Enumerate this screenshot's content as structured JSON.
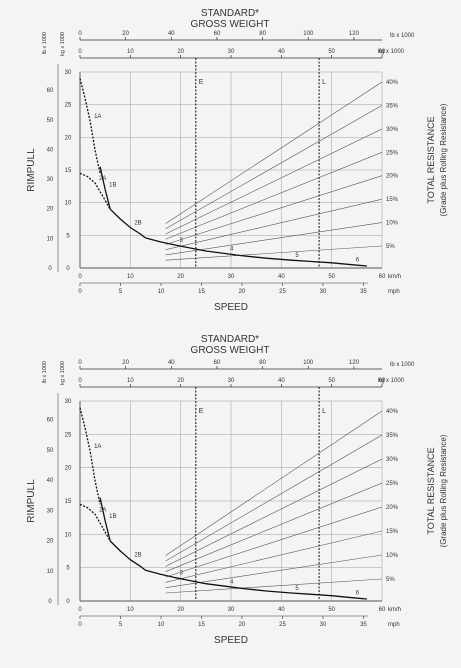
{
  "chart_data": [
    {
      "type": "line",
      "title": "STANDARD*",
      "subtitle": "GROSS WEIGHT",
      "ylabel": "RIMPULL",
      "xlabel": "SPEED",
      "right_label_1": "TOTAL RESISTANCE",
      "right_label_2": "(Grade plus Rolling Resistance)",
      "top_units_lb": "lb x 1000",
      "top_units_kg": "kg x 1000",
      "bottom_units_kmh": "km/h",
      "bottom_units_mph": "mph",
      "left_units_lb": "lb x 1000",
      "left_units_kg": "kg x 1000",
      "top_lb_ticks": [
        "0",
        "20",
        "40",
        "60",
        "80",
        "100",
        "120"
      ],
      "top_kg_ticks": [
        "0",
        "10",
        "20",
        "30",
        "40",
        "50",
        "60"
      ],
      "rimpull_kg_ticks": [
        "0",
        "5",
        "10",
        "15",
        "20",
        "25",
        "30"
      ],
      "rimpull_lb_ticks": [
        "0",
        "10",
        "20",
        "30",
        "40",
        "50",
        "60"
      ],
      "kmh_ticks": [
        "0",
        "10",
        "20",
        "30",
        "40",
        "50",
        "60"
      ],
      "mph_ticks": [
        "0",
        "5",
        "10",
        "15",
        "20",
        "25",
        "30",
        "35"
      ],
      "resistance_ticks": [
        "40%",
        "35%",
        "30%",
        "25%",
        "20%",
        "15%",
        "10%",
        "5%"
      ],
      "weight_markers": [
        {
          "label": "E",
          "kg": 23
        },
        {
          "label": "L",
          "kg": 47.5
        }
      ],
      "xlim_kmh": [
        0,
        60
      ],
      "ylim_kg": [
        0,
        30
      ],
      "series": [
        {
          "name": "1A",
          "style": "dashed",
          "x_kmh": [
            0,
            1,
            2,
            3,
            4
          ],
          "y_kg": [
            29,
            26,
            22.5,
            18,
            14.5
          ]
        },
        {
          "name": "2A",
          "style": "dashed",
          "x_kmh": [
            0,
            1.5,
            3,
            4.5,
            6
          ],
          "y_kg": [
            14.5,
            14,
            13,
            11,
            9
          ]
        },
        {
          "name": "1B",
          "style": "solid",
          "x_kmh": [
            4,
            5,
            6
          ],
          "y_kg": [
            15.5,
            12,
            9
          ]
        },
        {
          "name": "2B",
          "style": "solid",
          "x_kmh": [
            6,
            8,
            10,
            12,
            13
          ],
          "y_kg": [
            9,
            7.5,
            6.2,
            5.2,
            4.6
          ]
        },
        {
          "name": "3",
          "style": "solid",
          "x_kmh": [
            13,
            16,
            19,
            21
          ],
          "y_kg": [
            4.6,
            4.0,
            3.5,
            3.2
          ]
        },
        {
          "name": "4",
          "style": "solid",
          "x_kmh": [
            21,
            25,
            29,
            32
          ],
          "y_kg": [
            3.2,
            2.6,
            2.2,
            1.9
          ]
        },
        {
          "name": "5",
          "style": "solid",
          "x_kmh": [
            32,
            37,
            42,
            46
          ],
          "y_kg": [
            1.9,
            1.5,
            1.2,
            1.0
          ]
        },
        {
          "name": "6",
          "style": "solid",
          "x_kmh": [
            46,
            50,
            54,
            57
          ],
          "y_kg": [
            1.0,
            0.8,
            0.5,
            0.3
          ]
        }
      ],
      "grid": true
    },
    {
      "type": "line",
      "title": "STANDARD*",
      "subtitle": "GROSS WEIGHT",
      "ylabel": "RIMPULL",
      "xlabel": "SPEED",
      "right_label_1": "TOTAL RESISTANCE",
      "right_label_2": "(Grade plus Rolling Resistance)",
      "top_units_lb": "lb x 1000",
      "top_units_kg": "kg x 1000",
      "bottom_units_kmh": "km/h",
      "bottom_units_mph": "mph",
      "left_units_lb": "lb x 1000",
      "left_units_kg": "kg x 1000",
      "top_lb_ticks": [
        "0",
        "20",
        "40",
        "60",
        "80",
        "100",
        "120"
      ],
      "top_kg_ticks": [
        "0",
        "10",
        "20",
        "30",
        "40",
        "50",
        "60"
      ],
      "rimpull_kg_ticks": [
        "0",
        "5",
        "10",
        "15",
        "20",
        "25",
        "30"
      ],
      "rimpull_lb_ticks": [
        "0",
        "10",
        "20",
        "30",
        "40",
        "50",
        "60"
      ],
      "kmh_ticks": [
        "0",
        "10",
        "20",
        "30",
        "40",
        "50",
        "60"
      ],
      "mph_ticks": [
        "0",
        "5",
        "10",
        "15",
        "20",
        "25",
        "30",
        "35"
      ],
      "resistance_ticks": [
        "40%",
        "35%",
        "30%",
        "25%",
        "20%",
        "15%",
        "10%",
        "5%"
      ],
      "weight_markers": [
        {
          "label": "E",
          "kg": 23
        },
        {
          "label": "L",
          "kg": 47.5
        }
      ],
      "xlim_kmh": [
        0,
        60
      ],
      "ylim_kg": [
        0,
        30
      ],
      "series": [
        {
          "name": "1A",
          "style": "dashed",
          "x_kmh": [
            0,
            1,
            2,
            3,
            4
          ],
          "y_kg": [
            29,
            26,
            22.5,
            18,
            14.5
          ]
        },
        {
          "name": "2A",
          "style": "dashed",
          "x_kmh": [
            0,
            1.5,
            3,
            4.5,
            6
          ],
          "y_kg": [
            14.5,
            14,
            13,
            11,
            9
          ]
        },
        {
          "name": "1B",
          "style": "solid",
          "x_kmh": [
            4,
            5,
            6
          ],
          "y_kg": [
            15.5,
            12,
            9
          ]
        },
        {
          "name": "2B",
          "style": "solid",
          "x_kmh": [
            6,
            8,
            10,
            12,
            13
          ],
          "y_kg": [
            9,
            7.5,
            6.2,
            5.2,
            4.6
          ]
        },
        {
          "name": "3",
          "style": "solid",
          "x_kmh": [
            13,
            16,
            19,
            21
          ],
          "y_kg": [
            4.6,
            4.0,
            3.5,
            3.2
          ]
        },
        {
          "name": "4",
          "style": "solid",
          "x_kmh": [
            21,
            25,
            29,
            32
          ],
          "y_kg": [
            3.2,
            2.6,
            2.2,
            1.9
          ]
        },
        {
          "name": "5",
          "style": "solid",
          "x_kmh": [
            32,
            37,
            42,
            46
          ],
          "y_kg": [
            1.9,
            1.5,
            1.2,
            1.0
          ]
        },
        {
          "name": "6",
          "style": "solid",
          "x_kmh": [
            46,
            50,
            54,
            57
          ],
          "y_kg": [
            1.0,
            0.8,
            0.5,
            0.3
          ]
        }
      ],
      "grid": true
    }
  ]
}
